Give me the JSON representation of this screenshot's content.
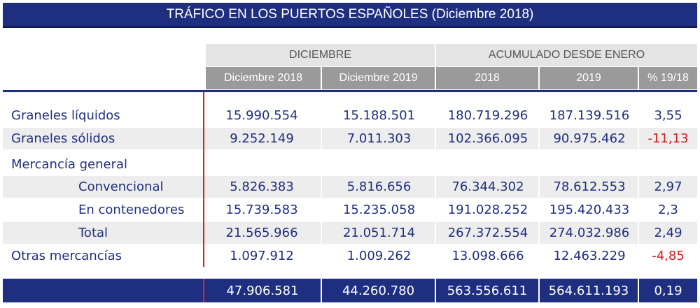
{
  "title": "TRÁFICO EN LOS PUERTOS ESPAÑOLES (Diciembre 2018)",
  "groups": {
    "month": "DICIEMBRE",
    "cumulative": "ACUMULADO DESDE ENERO"
  },
  "columns": [
    "Diciembre 2018",
    "Diciembre 2019",
    "2018",
    "2019",
    "% 19/18"
  ],
  "rows": [
    {
      "label": "Graneles líquidos",
      "values": [
        "15.990.554",
        "15.188.501",
        "180.719.296",
        "187.139.516",
        "3,55"
      ]
    },
    {
      "label": "Graneles sólidos",
      "values": [
        "9.252.149",
        "7.011.303",
        "102.366.095",
        "90.975.462",
        "-11,13"
      ]
    },
    {
      "label": "Mercancía general",
      "values": [
        "",
        "",
        "",
        "",
        ""
      ]
    },
    {
      "label": "Convencional",
      "values": [
        "5.826.383",
        "5.816.656",
        "76.344.302",
        "78.612.553",
        "2,97"
      ]
    },
    {
      "label": "En contenedores",
      "values": [
        "15.739.583",
        "15.235.058",
        "191.028.252",
        "195.420.433",
        "2,3"
      ]
    },
    {
      "label": "Total",
      "values": [
        "21.565.966",
        "21.051.714",
        "267.372.554",
        "274.032.986",
        "2,49"
      ]
    },
    {
      "label": "Otras mercancías",
      "values": [
        "1.097.912",
        "1.009.262",
        "13.098.666",
        "12.463.229",
        "-4,85"
      ]
    }
  ],
  "totals": [
    "47.906.581",
    "44.260.780",
    "563.556.611",
    "564.611.193",
    "0,19"
  ]
}
